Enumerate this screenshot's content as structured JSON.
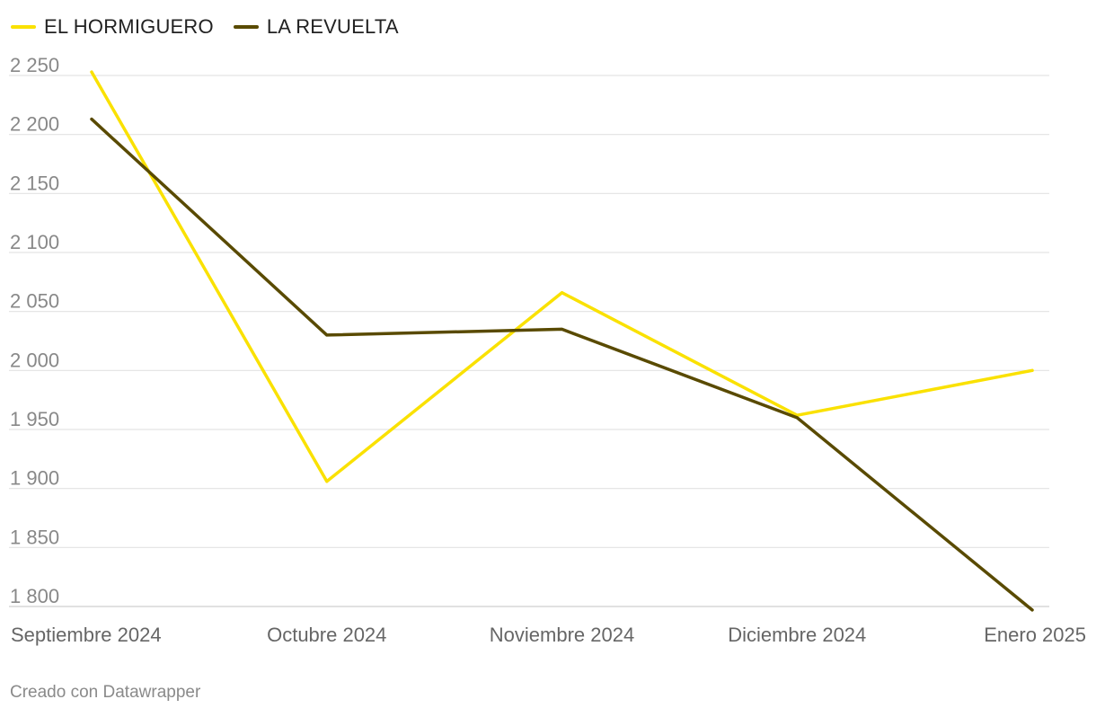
{
  "chart_data": {
    "type": "line",
    "title": "",
    "xlabel": "",
    "ylabel": "",
    "categories": [
      "Septiembre 2024",
      "Octubre 2024",
      "Noviembre 2024",
      "Diciembre 2024",
      "Enero 2025"
    ],
    "series": [
      {
        "name": "EL HORMIGUERO",
        "color": "#fae100",
        "values": [
          2253,
          1906,
          2066,
          1962,
          2000
        ]
      },
      {
        "name": "LA REVUELTA",
        "color": "#594a00",
        "values": [
          2213,
          2030,
          2035,
          1960,
          1797
        ]
      }
    ],
    "ylim": [
      1800,
      2250
    ],
    "yticks": [
      1800,
      1850,
      1900,
      1950,
      2000,
      2050,
      2100,
      2150,
      2200,
      2250
    ],
    "ytick_labels": [
      "1 800",
      "1 850",
      "1 900",
      "1 950",
      "2 000",
      "2 050",
      "2 100",
      "2 150",
      "2 200",
      "2 250"
    ],
    "grid": true,
    "legend": "top-left"
  },
  "footer": {
    "credit": "Creado con Datawrapper"
  }
}
